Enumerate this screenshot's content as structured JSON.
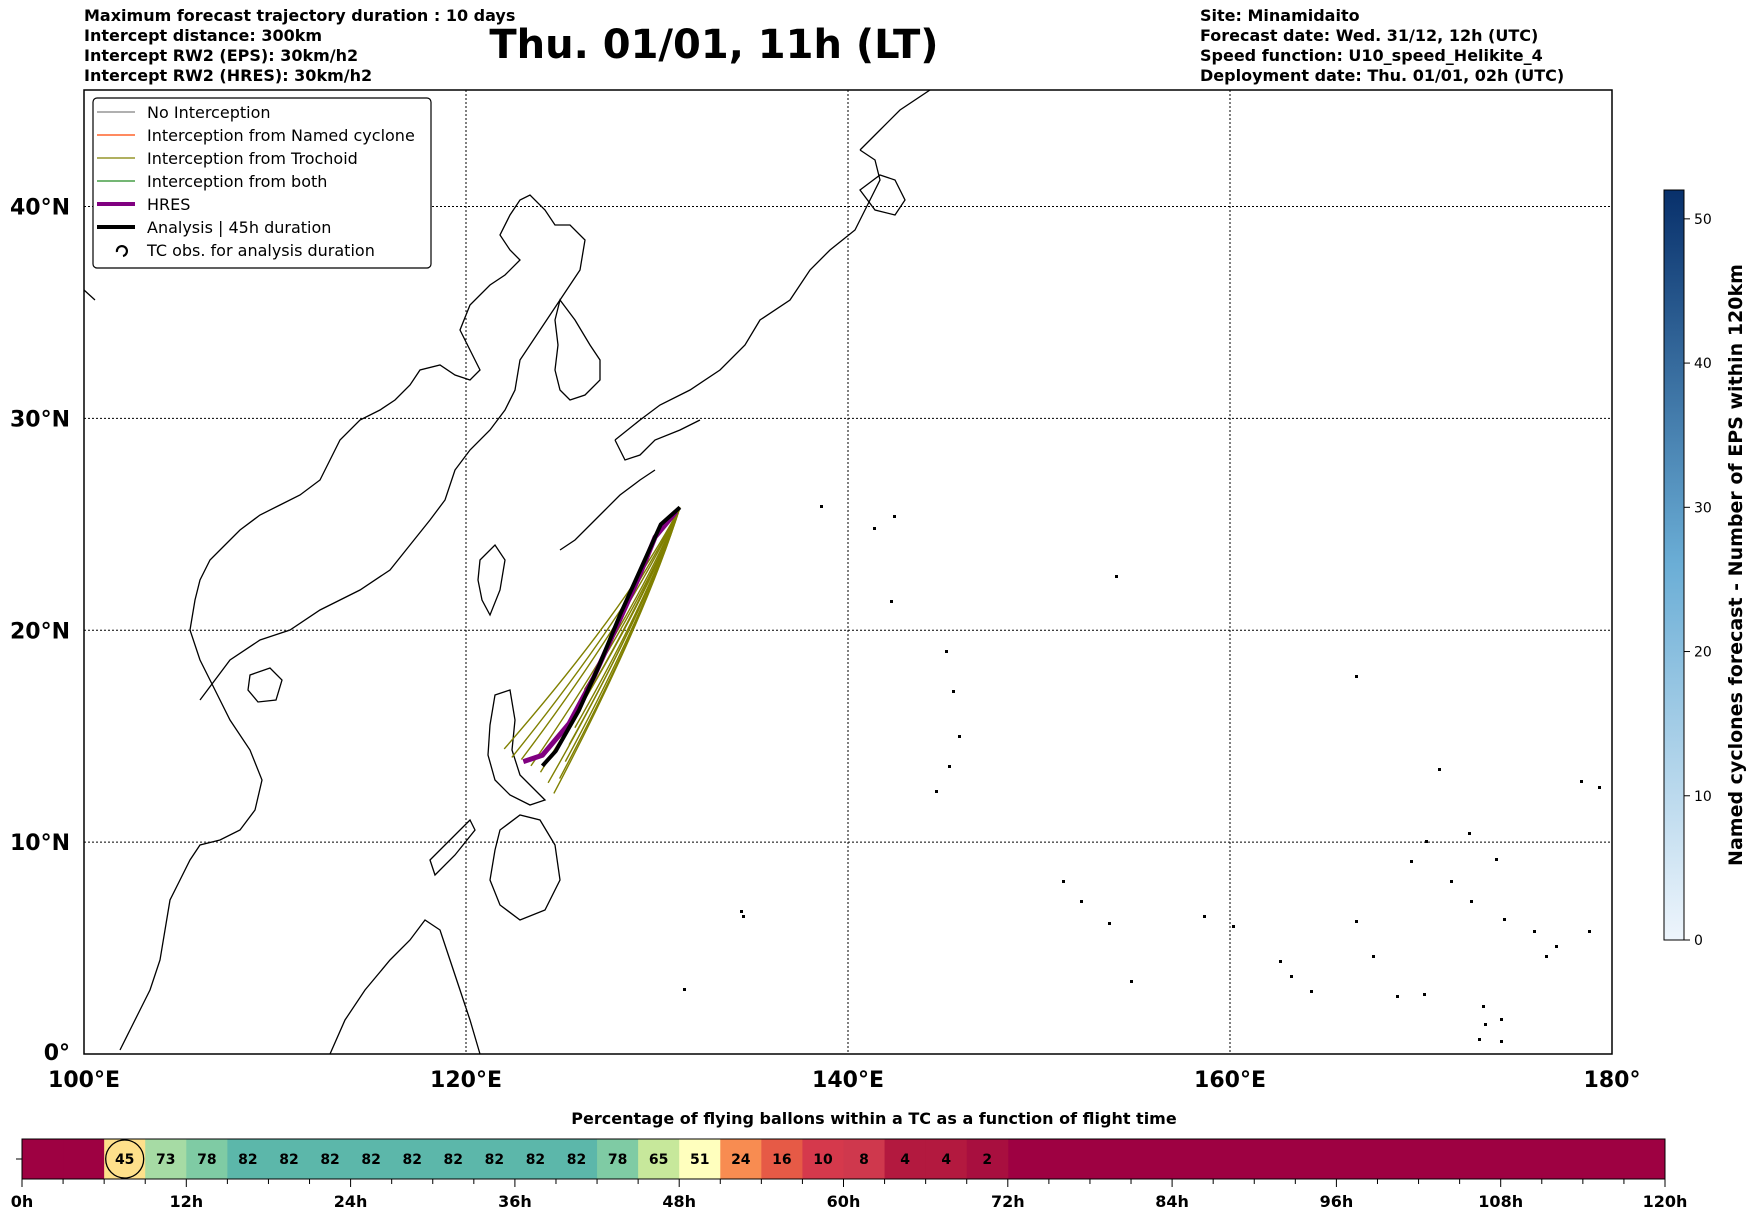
{
  "header": {
    "left_lines": [
      "Maximum forecast trajectory duration : 10 days",
      "Intercept distance: 300km",
      "Intercept RW2 (EPS):  30km/h2",
      "Intercept RW2 (HRES): 30km/h2"
    ],
    "title": "Thu. 01/01, 11h (LT)",
    "right_lines": [
      "Site: Minamidaito",
      "Forecast date: Wed. 31/12, 12h (UTC)",
      "Speed function: U10_speed_Helikite_4",
      "Deployment date: Thu. 01/01, 02h (UTC)"
    ]
  },
  "map": {
    "lon_labels": [
      "100°E",
      "120°E",
      "140°E",
      "160°E",
      "180°"
    ],
    "lat_labels": [
      "40°N",
      "30°N",
      "20°N",
      "10°N",
      "0°"
    ],
    "lon_values": [
      100,
      120,
      140,
      160,
      180
    ],
    "lat_values": [
      40,
      30,
      20,
      10,
      0
    ],
    "extent": {
      "lon": [
        100,
        180
      ],
      "lat": [
        0,
        45.5
      ]
    },
    "site": {
      "name": "Minamidaito",
      "lon": 131.2,
      "lat": 25.8
    },
    "legend": [
      {
        "label": "No Interception",
        "color": "#808080",
        "style": "thin"
      },
      {
        "label": "Interception from Named cyclone",
        "color": "#ff4500",
        "style": "thin"
      },
      {
        "label": "Interception from Trochoid",
        "color": "#808000",
        "style": "thin"
      },
      {
        "label": "Interception from both",
        "color": "#228b22",
        "style": "thin"
      },
      {
        "label": "HRES",
        "color": "#800080",
        "style": "thick"
      },
      {
        "label": "Analysis | 45h duration",
        "color": "#000000",
        "style": "thick"
      },
      {
        "label": "TC obs. for analysis duration",
        "color": "#000000",
        "style": "symbol"
      }
    ],
    "analysis_track": [
      [
        131.2,
        25.8
      ],
      [
        130.2,
        25.0
      ],
      [
        129.2,
        23.0
      ],
      [
        128.1,
        20.8
      ],
      [
        127.0,
        18.4
      ],
      [
        125.9,
        16.2
      ],
      [
        124.7,
        14.3
      ],
      [
        124.0,
        13.6
      ]
    ],
    "hres_track": [
      [
        131.0,
        25.6
      ],
      [
        129.9,
        24.4
      ],
      [
        129.0,
        22.4
      ],
      [
        127.9,
        20.2
      ],
      [
        126.7,
        17.8
      ],
      [
        125.4,
        15.6
      ],
      [
        124.0,
        14.1
      ],
      [
        123.0,
        13.8
      ]
    ],
    "ensemble_end_points": [
      [
        122.0,
        14.4
      ],
      [
        122.4,
        14.0
      ],
      [
        122.9,
        13.9
      ],
      [
        123.4,
        13.6
      ],
      [
        123.9,
        13.3
      ],
      [
        124.3,
        12.8
      ],
      [
        124.6,
        12.3
      ],
      [
        124.9,
        13.0
      ],
      [
        125.2,
        13.8
      ],
      [
        125.4,
        14.6
      ],
      [
        125.7,
        15.4
      ],
      [
        126.0,
        16.4
      ],
      [
        126.2,
        17.2
      ]
    ]
  },
  "colorbar": {
    "label": "Named cyclones forecast - Number of EPS within 120km",
    "ticks": [
      "0",
      "10",
      "20",
      "30",
      "40",
      "50"
    ],
    "tick_values": [
      0,
      10,
      20,
      30,
      40,
      50
    ],
    "max": 52,
    "color_low": "#eef5fc",
    "color_high": "#08306b"
  },
  "timeline": {
    "title": "Percentage of flying ballons within a TC as a function of flight time",
    "tick_labels": [
      "0h",
      "12h",
      "24h",
      "36h",
      "48h",
      "60h",
      "72h",
      "84h",
      "96h",
      "108h",
      "120h"
    ],
    "hours_total": 120,
    "cell_hours": 3,
    "cells": [
      {
        "value": "",
        "color": "#9e0142"
      },
      {
        "value": "",
        "color": "#9e0142"
      },
      {
        "value": "45",
        "color": "#fee08b",
        "circled": true
      },
      {
        "value": "73",
        "color": "#a6dba4"
      },
      {
        "value": "78",
        "color": "#7fcba4"
      },
      {
        "value": "82",
        "color": "#5cb7aa"
      },
      {
        "value": "82",
        "color": "#5cb7aa"
      },
      {
        "value": "82",
        "color": "#5cb7aa"
      },
      {
        "value": "82",
        "color": "#5cb7aa"
      },
      {
        "value": "82",
        "color": "#5cb7aa"
      },
      {
        "value": "82",
        "color": "#5cb7aa"
      },
      {
        "value": "82",
        "color": "#5cb7aa"
      },
      {
        "value": "82",
        "color": "#5cb7aa"
      },
      {
        "value": "82",
        "color": "#5cb7aa"
      },
      {
        "value": "78",
        "color": "#7fcba4"
      },
      {
        "value": "65",
        "color": "#c7e89b"
      },
      {
        "value": "51",
        "color": "#ffffbe"
      },
      {
        "value": "24",
        "color": "#f88c51"
      },
      {
        "value": "16",
        "color": "#e65a46"
      },
      {
        "value": "10",
        "color": "#d5394c"
      },
      {
        "value": "8",
        "color": "#cf384d"
      },
      {
        "value": "4",
        "color": "#b3193f"
      },
      {
        "value": "4",
        "color": "#b3193f"
      },
      {
        "value": "2",
        "color": "#a80f3f"
      }
    ],
    "rest_color": "#9e0142"
  }
}
